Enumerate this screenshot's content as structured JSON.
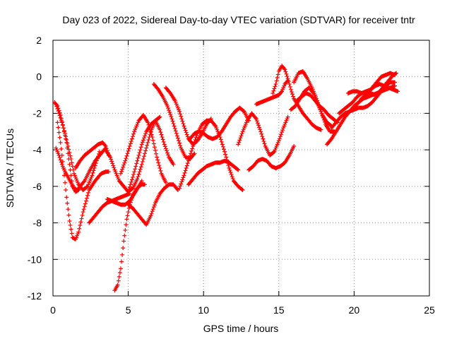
{
  "chart_data": {
    "type": "scatter",
    "title": "Day 023 of 2022, Sidereal Day-to-day VTEC variation (SDTVAR) for receiver tntr",
    "xlabel": "GPS time / hours",
    "ylabel": "SDTVAR / TECUs",
    "xlim": [
      0,
      25
    ],
    "ylim": [
      -12,
      2
    ],
    "xticks": [
      0,
      5,
      10,
      15,
      20,
      25
    ],
    "yticks": [
      2,
      0,
      -2,
      -4,
      -6,
      -8,
      -10,
      -12
    ],
    "grid": true,
    "marker": "+",
    "color": "#ff0000",
    "series": [
      {
        "x": [
          0.1,
          0.3,
          0.5,
          0.7,
          0.9,
          1.1,
          1.3,
          1.5,
          1.7
        ],
        "y": [
          -1.4,
          -1.6,
          -2.1,
          -2.8,
          -3.6,
          -4.8,
          -6.0,
          -6.3,
          -6.2
        ]
      },
      {
        "x": [
          0.2,
          0.4,
          0.6,
          0.8,
          1.0,
          1.2,
          1.4,
          1.7,
          2.0,
          2.3,
          2.6,
          2.9,
          3.1
        ],
        "y": [
          -1.5,
          -2.0,
          -2.5,
          -3.1,
          -3.8,
          -4.5,
          -5.3,
          -5.9,
          -6.2,
          -6.0,
          -5.4,
          -4.6,
          -4.1
        ]
      },
      {
        "x": [
          0.3,
          0.5,
          0.7,
          0.9,
          1.1,
          1.3,
          1.5,
          1.7,
          2.0,
          2.4,
          2.8,
          3.2,
          3.5,
          3.7
        ],
        "y": [
          -2.5,
          -3.6,
          -5.0,
          -6.6,
          -7.9,
          -8.8,
          -8.9,
          -8.5,
          -7.4,
          -6.2,
          -5.7,
          -5.3,
          -5.2,
          -5.2
        ]
      },
      {
        "x": [
          0.2,
          0.4,
          0.6,
          0.8,
          1.0,
          1.2,
          1.4,
          1.6,
          1.8,
          2.1,
          2.4,
          2.8,
          3.2,
          3.5
        ],
        "y": [
          -3.9,
          -4.3,
          -4.8,
          -5.2,
          -5.5,
          -5.8,
          -6.1,
          -6.2,
          -6.0,
          -5.7,
          -5.2,
          -4.6,
          -4.2,
          -3.9
        ]
      },
      {
        "x": [
          1.5,
          1.8,
          2.1,
          2.4,
          2.7,
          3.0,
          3.3,
          3.5,
          3.7
        ],
        "y": [
          -5.0,
          -4.6,
          -4.3,
          -4.1,
          -3.9,
          -3.7,
          -3.6,
          -3.8,
          -4.3
        ]
      },
      {
        "x": [
          2.4,
          2.7,
          3.0,
          3.3,
          3.6,
          3.9,
          4.2,
          4.5,
          4.8,
          5.1
        ],
        "y": [
          -8.0,
          -7.7,
          -7.4,
          -7.1,
          -6.9,
          -6.8,
          -6.7,
          -6.6,
          -6.5,
          -6.4
        ]
      },
      {
        "x": [
          3.5,
          3.8,
          4.1,
          4.4,
          4.7,
          5.0,
          5.3,
          5.6,
          5.9,
          6.2,
          6.5,
          6.8,
          7.1
        ],
        "y": [
          -4.0,
          -4.4,
          -5.1,
          -5.7,
          -6.0,
          -6.3,
          -6.1,
          -5.6,
          -4.8,
          -3.9,
          -3.0,
          -2.4,
          -2.2
        ]
      },
      {
        "x": [
          3.6,
          3.9,
          4.2,
          4.5,
          4.8,
          5.1,
          5.4,
          5.7,
          5.9
        ],
        "y": [
          -6.7,
          -6.8,
          -6.9,
          -7.0,
          -7.0,
          -6.8,
          -6.4,
          -6.0,
          -5.7
        ]
      },
      {
        "x": [
          4.1,
          4.3,
          4.5,
          4.7,
          4.9,
          5.1,
          5.3,
          5.5,
          5.7,
          5.9,
          6.1
        ],
        "y": [
          -11.7,
          -11.4,
          -10.5,
          -9.0,
          -7.8,
          -7.0,
          -6.5,
          -6.2,
          -6.0,
          -5.9,
          -5.9
        ]
      },
      {
        "x": [
          4.5,
          4.8,
          5.1,
          5.4,
          5.7,
          6.0,
          6.3,
          6.6,
          6.9,
          7.2,
          7.5
        ],
        "y": [
          -5.3,
          -4.6,
          -3.8,
          -3.0,
          -2.4,
          -2.1,
          -2.5,
          -3.3,
          -4.4,
          -5.3,
          -5.8
        ]
      },
      {
        "x": [
          5.0,
          5.3,
          5.6,
          5.9,
          6.2,
          6.5,
          6.8,
          7.1,
          7.4,
          7.7,
          8.0,
          8.3
        ],
        "y": [
          -7.0,
          -7.2,
          -7.5,
          -7.8,
          -8.1,
          -7.6,
          -6.9,
          -6.4,
          -6.1,
          -5.9,
          -5.9,
          -6.2
        ]
      },
      {
        "x": [
          5.0,
          5.3,
          5.6,
          5.9,
          6.2,
          6.5,
          6.8,
          7.1,
          7.4,
          7.7,
          8.0
        ],
        "y": [
          -6.3,
          -5.5,
          -4.6,
          -3.7,
          -3.0,
          -2.6,
          -2.4,
          -2.9,
          -3.7,
          -4.4,
          -4.8
        ]
      },
      {
        "x": [
          6.7,
          7.0,
          7.3,
          7.6,
          7.9,
          8.2,
          8.5,
          8.8,
          9.1,
          9.4
        ],
        "y": [
          -0.4,
          -0.7,
          -1.1,
          -1.6,
          -2.3,
          -3.1,
          -3.9,
          -4.4,
          -4.5,
          -4.2
        ]
      },
      {
        "x": [
          7.5,
          7.8,
          8.1,
          8.4,
          8.7,
          9.0,
          9.3,
          9.6,
          9.9,
          10.2,
          10.5
        ],
        "y": [
          -0.6,
          -0.9,
          -1.3,
          -1.9,
          -2.7,
          -3.4,
          -3.7,
          -3.5,
          -3.1,
          -2.6,
          -2.3
        ]
      },
      {
        "x": [
          8.4,
          8.7,
          9.0,
          9.3,
          9.6,
          9.9,
          10.2,
          10.5,
          10.8,
          11.1,
          11.4,
          11.7,
          12.0,
          12.3,
          12.6
        ],
        "y": [
          -6.1,
          -5.4,
          -4.6,
          -3.8,
          -3.1,
          -2.6,
          -2.4,
          -2.4,
          -2.7,
          -3.3,
          -4.1,
          -5.0,
          -5.7,
          -6.0,
          -6.2
        ]
      },
      {
        "x": [
          9.0,
          9.3,
          9.6,
          9.9,
          10.2,
          10.5,
          10.8,
          11.1,
          11.4,
          11.7,
          12.0,
          12.3
        ],
        "y": [
          -5.9,
          -5.6,
          -5.3,
          -5.1,
          -4.9,
          -4.8,
          -4.7,
          -4.7,
          -4.6,
          -4.7,
          -4.9,
          -5.1
        ]
      },
      {
        "x": [
          9.1,
          9.4,
          9.7,
          10.0,
          10.3,
          10.6,
          10.9,
          11.2,
          11.5,
          11.8,
          12.1,
          12.4,
          12.7,
          13.0
        ],
        "y": [
          -3.4,
          -3.1,
          -3.0,
          -3.1,
          -3.3,
          -3.4,
          -3.3,
          -3.0,
          -2.6,
          -2.2,
          -1.9,
          -1.7,
          -1.9,
          -2.4
        ]
      },
      {
        "x": [
          12.3,
          12.6,
          12.9,
          13.2,
          13.5,
          13.8,
          14.1,
          14.4,
          14.7,
          15.0,
          15.3,
          15.6
        ],
        "y": [
          -3.7,
          -3.0,
          -2.4,
          -2.0,
          -2.3,
          -3.0,
          -3.8,
          -4.3,
          -4.1,
          -3.5,
          -2.8,
          -2.2
        ]
      },
      {
        "x": [
          13.0,
          13.3,
          13.6,
          13.9,
          14.2,
          14.5,
          14.8,
          15.1,
          15.4,
          15.7,
          16.0
        ],
        "y": [
          -5.1,
          -4.9,
          -4.6,
          -4.5,
          -4.6,
          -4.9,
          -5.0,
          -4.9,
          -4.7,
          -4.3,
          -3.8
        ]
      },
      {
        "x": [
          13.5,
          13.8,
          14.1,
          14.4,
          14.7,
          15.0,
          15.2,
          15.4,
          15.6
        ],
        "y": [
          -1.5,
          -1.4,
          -1.3,
          -1.2,
          -1.1,
          -1.0,
          -0.8,
          -0.4,
          -0.2
        ]
      },
      {
        "x": [
          14.6,
          14.8,
          15.0,
          15.2,
          15.4,
          15.6,
          15.8,
          16.0,
          16.3,
          16.6,
          16.9,
          17.2,
          17.5,
          17.8
        ],
        "y": [
          -0.9,
          -0.4,
          0.3,
          0.6,
          0.4,
          -0.1,
          -0.7,
          -1.2,
          -1.6,
          -2.0,
          -2.3,
          -2.6,
          -2.8,
          -2.9
        ]
      },
      {
        "x": [
          16.0,
          16.3,
          16.6,
          16.9,
          17.2,
          17.5,
          17.8,
          18.1,
          18.4,
          18.7
        ],
        "y": [
          -0.3,
          0.2,
          0.3,
          -0.1,
          -0.6,
          -1.2,
          -1.9,
          -2.6,
          -3.0,
          -3.0
        ]
      },
      {
        "x": [
          15.8,
          16.1,
          16.4,
          16.7,
          17.0,
          17.3,
          17.6,
          17.9,
          18.2,
          18.5
        ],
        "y": [
          -1.8,
          -1.6,
          -1.2,
          -0.8,
          -0.6,
          -0.9,
          -1.5,
          -2.1,
          -2.5,
          -2.7
        ]
      },
      {
        "x": [
          16.2,
          16.5,
          16.8,
          17.1,
          17.4,
          17.7,
          18.0,
          18.3,
          18.6,
          18.9
        ],
        "y": [
          -1.3,
          -1.1,
          -0.9,
          -1.0,
          -1.3,
          -1.6,
          -1.8,
          -2.1,
          -2.3,
          -2.5
        ]
      },
      {
        "x": [
          18.2,
          18.5,
          18.8,
          19.1,
          19.4,
          19.7,
          20.0,
          20.3,
          20.6,
          20.9,
          21.2,
          21.5,
          21.8,
          22.1,
          22.4,
          22.7
        ],
        "y": [
          -3.7,
          -3.4,
          -3.0,
          -2.6,
          -2.2,
          -1.9,
          -1.6,
          -1.4,
          -1.2,
          -1.1,
          -1.0,
          -0.9,
          -0.8,
          -0.7,
          -0.6,
          -0.5
        ]
      },
      {
        "x": [
          18.5,
          18.8,
          19.1,
          19.4,
          19.7,
          20.0,
          20.3,
          20.6,
          20.9,
          21.2,
          21.5,
          21.8,
          22.1,
          22.4,
          22.7
        ],
        "y": [
          -2.8,
          -2.5,
          -2.2,
          -2.0,
          -1.9,
          -1.8,
          -1.7,
          -1.7,
          -1.6,
          -1.4,
          -1.1,
          -0.8,
          -0.5,
          -0.3,
          -0.3
        ]
      },
      {
        "x": [
          19.0,
          19.3,
          19.6,
          19.9,
          20.2,
          20.5,
          20.8,
          21.1,
          21.4,
          21.7,
          22.0,
          22.3,
          22.6,
          22.8
        ],
        "y": [
          -2.0,
          -1.8,
          -1.6,
          -1.4,
          -1.1,
          -0.9,
          -0.8,
          -0.9,
          -1.0,
          -0.8,
          -0.5,
          -0.2,
          0.1,
          0.2
        ]
      },
      {
        "x": [
          19.6,
          19.9,
          20.2,
          20.5,
          20.8,
          21.1,
          21.4,
          21.7,
          22.0,
          22.3,
          22.6,
          22.9
        ],
        "y": [
          -0.9,
          -0.8,
          -0.8,
          -0.9,
          -0.8,
          -0.7,
          -0.5,
          -0.4,
          -0.5,
          -0.6,
          -0.7,
          -0.8
        ]
      },
      {
        "x": [
          20.0,
          20.3,
          20.6,
          20.9,
          21.2,
          21.5,
          21.8,
          22.1,
          22.4,
          22.7
        ],
        "y": [
          -1.7,
          -1.4,
          -1.1,
          -0.9,
          -0.6,
          -0.3,
          0.0,
          0.1,
          0.2,
          0.1
        ]
      }
    ]
  }
}
